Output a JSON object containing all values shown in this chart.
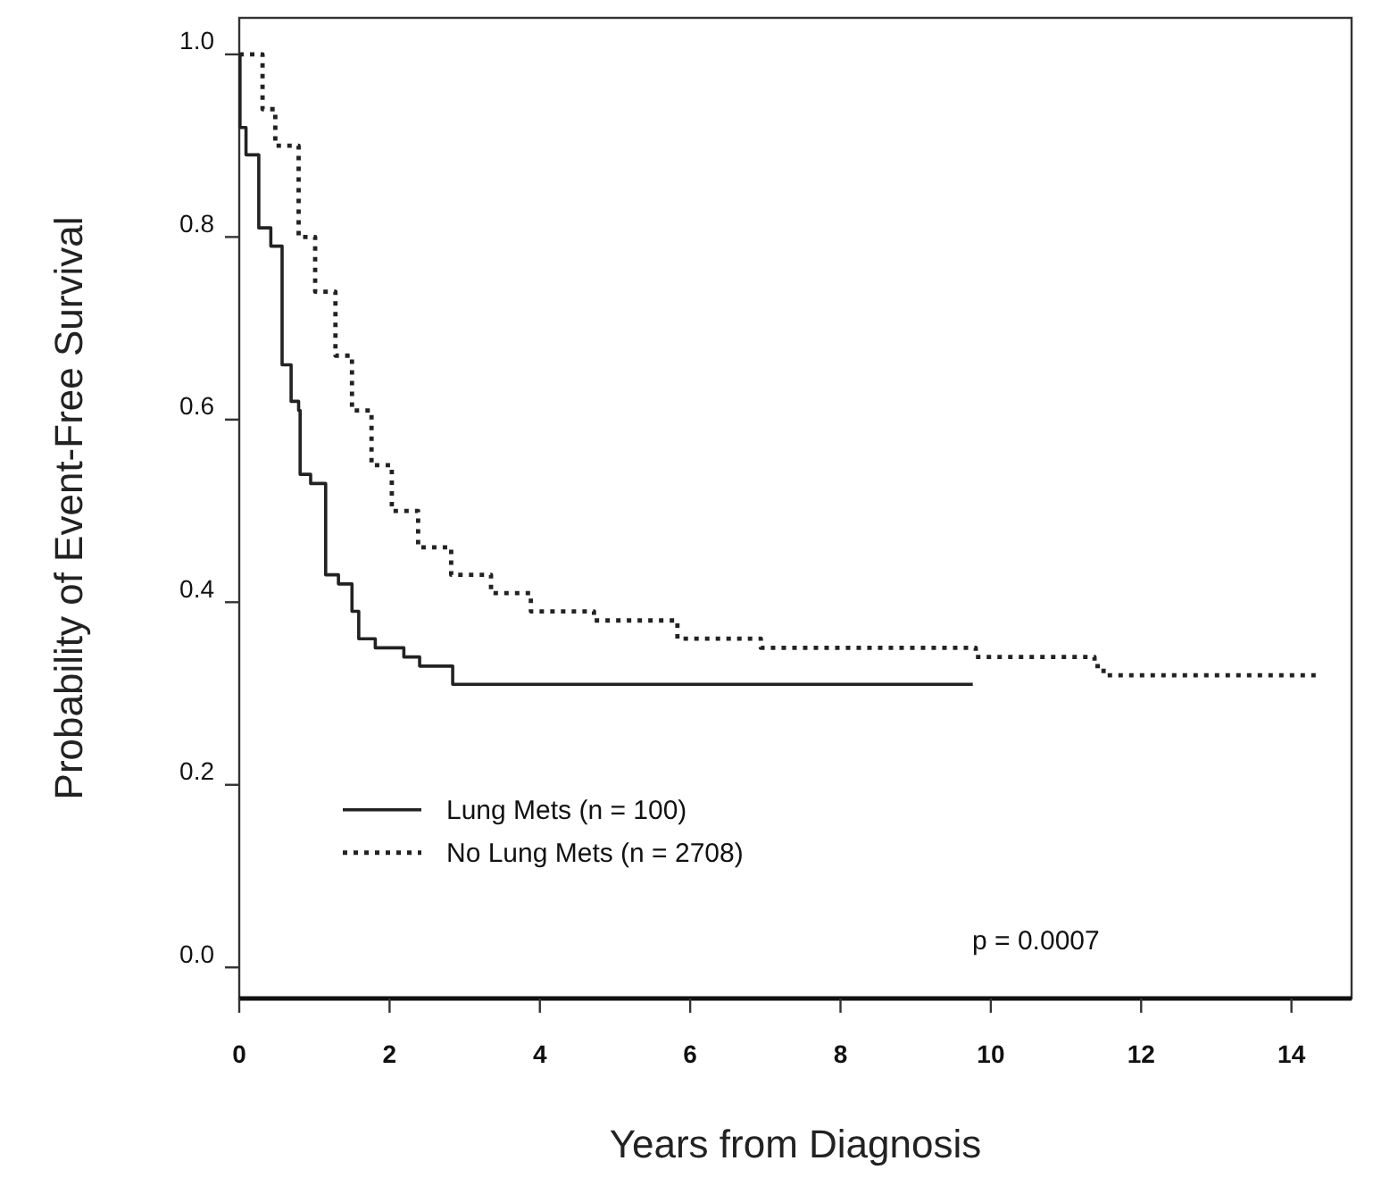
{
  "chart_data": {
    "type": "step",
    "xlabel": "Years from Diagnosis",
    "ylabel": "Probability of Event-Free Survival",
    "xlim": [
      0,
      14.8
    ],
    "ylim": [
      -0.034,
      1.04
    ],
    "xticks": [
      0,
      2,
      4,
      6,
      8,
      10,
      12,
      14
    ],
    "yticks": [
      {
        "value": 0,
        "label": "0.0"
      },
      {
        "value": 0.2,
        "label": "0.2"
      },
      {
        "value": 0.4,
        "label": "0.4"
      },
      {
        "value": 0.6,
        "label": "0.6"
      },
      {
        "value": 0.8,
        "label": "0.8"
      },
      {
        "value": 1,
        "label": "1.0"
      }
    ],
    "legend": "bottom left",
    "grid": false,
    "annotations": [
      "p = 0.0007"
    ],
    "series": [
      {
        "name": "Lung Mets (n = 100)",
        "color": "#222222",
        "line_style": "solid",
        "x": [
          0,
          0.01,
          0.09,
          0.26,
          0.42,
          0.57,
          0.69,
          0.79,
          0.81,
          0.95,
          1.15,
          1.32,
          1.5,
          1.59,
          1.81,
          2.19,
          2.4,
          2.84,
          9.76
        ],
        "values": [
          1,
          0.92,
          0.89,
          0.81,
          0.79,
          0.66,
          0.62,
          0.61,
          0.54,
          0.53,
          0.43,
          0.42,
          0.39,
          0.36,
          0.35,
          0.34,
          0.33,
          0.31,
          0.31
        ]
      },
      {
        "name": "No Lung Mets (n = 2708)",
        "color": "#222222",
        "line_style": "dotted",
        "x": [
          0,
          0.31,
          0.48,
          0.79,
          1.01,
          1.28,
          1.5,
          1.76,
          2.03,
          2.38,
          2.82,
          3.35,
          3.88,
          4.72,
          5.83,
          6.94,
          8.37,
          9.8,
          10.59,
          11.38,
          11.5,
          14.4
        ],
        "values": [
          1,
          0.94,
          0.9,
          0.8,
          0.74,
          0.67,
          0.61,
          0.55,
          0.5,
          0.46,
          0.43,
          0.41,
          0.39,
          0.38,
          0.36,
          0.35,
          0.35,
          0.34,
          0.34,
          0.33,
          0.32,
          0.32
        ]
      }
    ]
  }
}
